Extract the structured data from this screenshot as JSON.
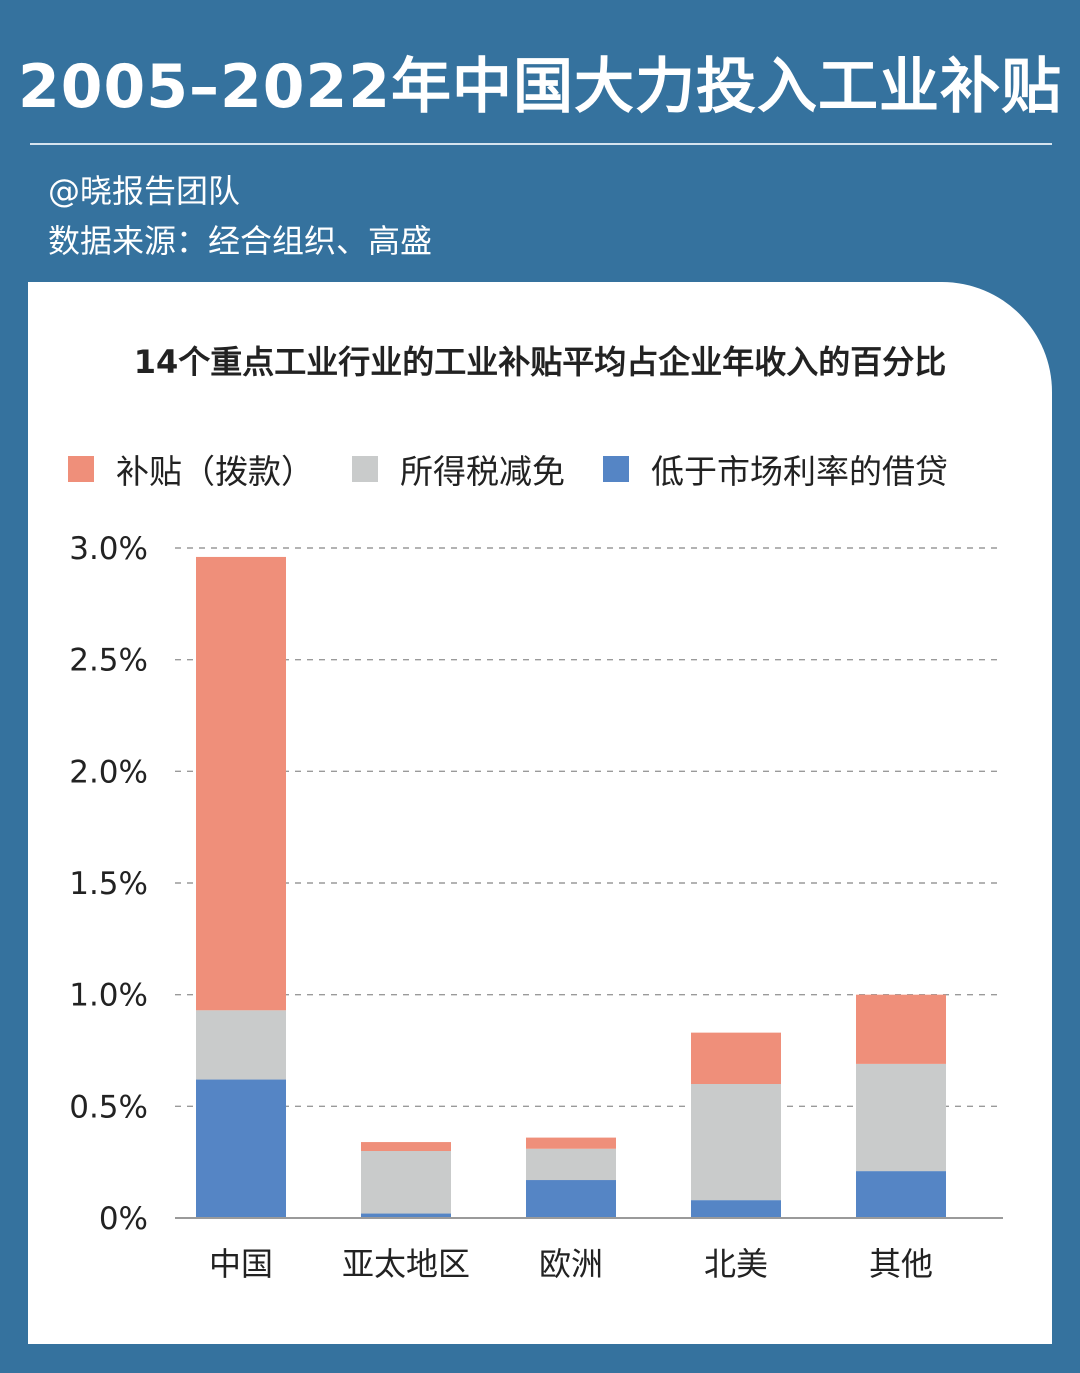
{
  "header": {
    "title": "2005–2022年中国大力投入工业补贴",
    "author": "@晓报告团队",
    "source": "数据来源：经合组织、高盛"
  },
  "chart_data": {
    "type": "bar",
    "stacked": true,
    "title": "14个重点工业行业的工业补贴平均占企业年收入的百分比",
    "categories": [
      "中国",
      "亚太地区",
      "欧洲",
      "北美",
      "其他"
    ],
    "series": [
      {
        "name": "低于市场利率的借贷",
        "color": "#5585c5",
        "values": [
          0.62,
          0.02,
          0.17,
          0.08,
          0.21
        ]
      },
      {
        "name": "所得税减免",
        "color": "#c9cbcb",
        "values": [
          0.31,
          0.28,
          0.14,
          0.52,
          0.48
        ]
      },
      {
        "name": "补贴（拨款）",
        "color": "#ef8f7a",
        "values": [
          2.03,
          0.04,
          0.05,
          0.23,
          0.31
        ]
      }
    ],
    "legend_order": [
      2,
      1,
      0
    ],
    "yticks": [
      "0%",
      "0.5%",
      "1.0%",
      "1.5%",
      "2.0%",
      "2.5%",
      "3.0%"
    ],
    "ylim": [
      0,
      3.0
    ],
    "grid": true,
    "legend_position": "top"
  }
}
